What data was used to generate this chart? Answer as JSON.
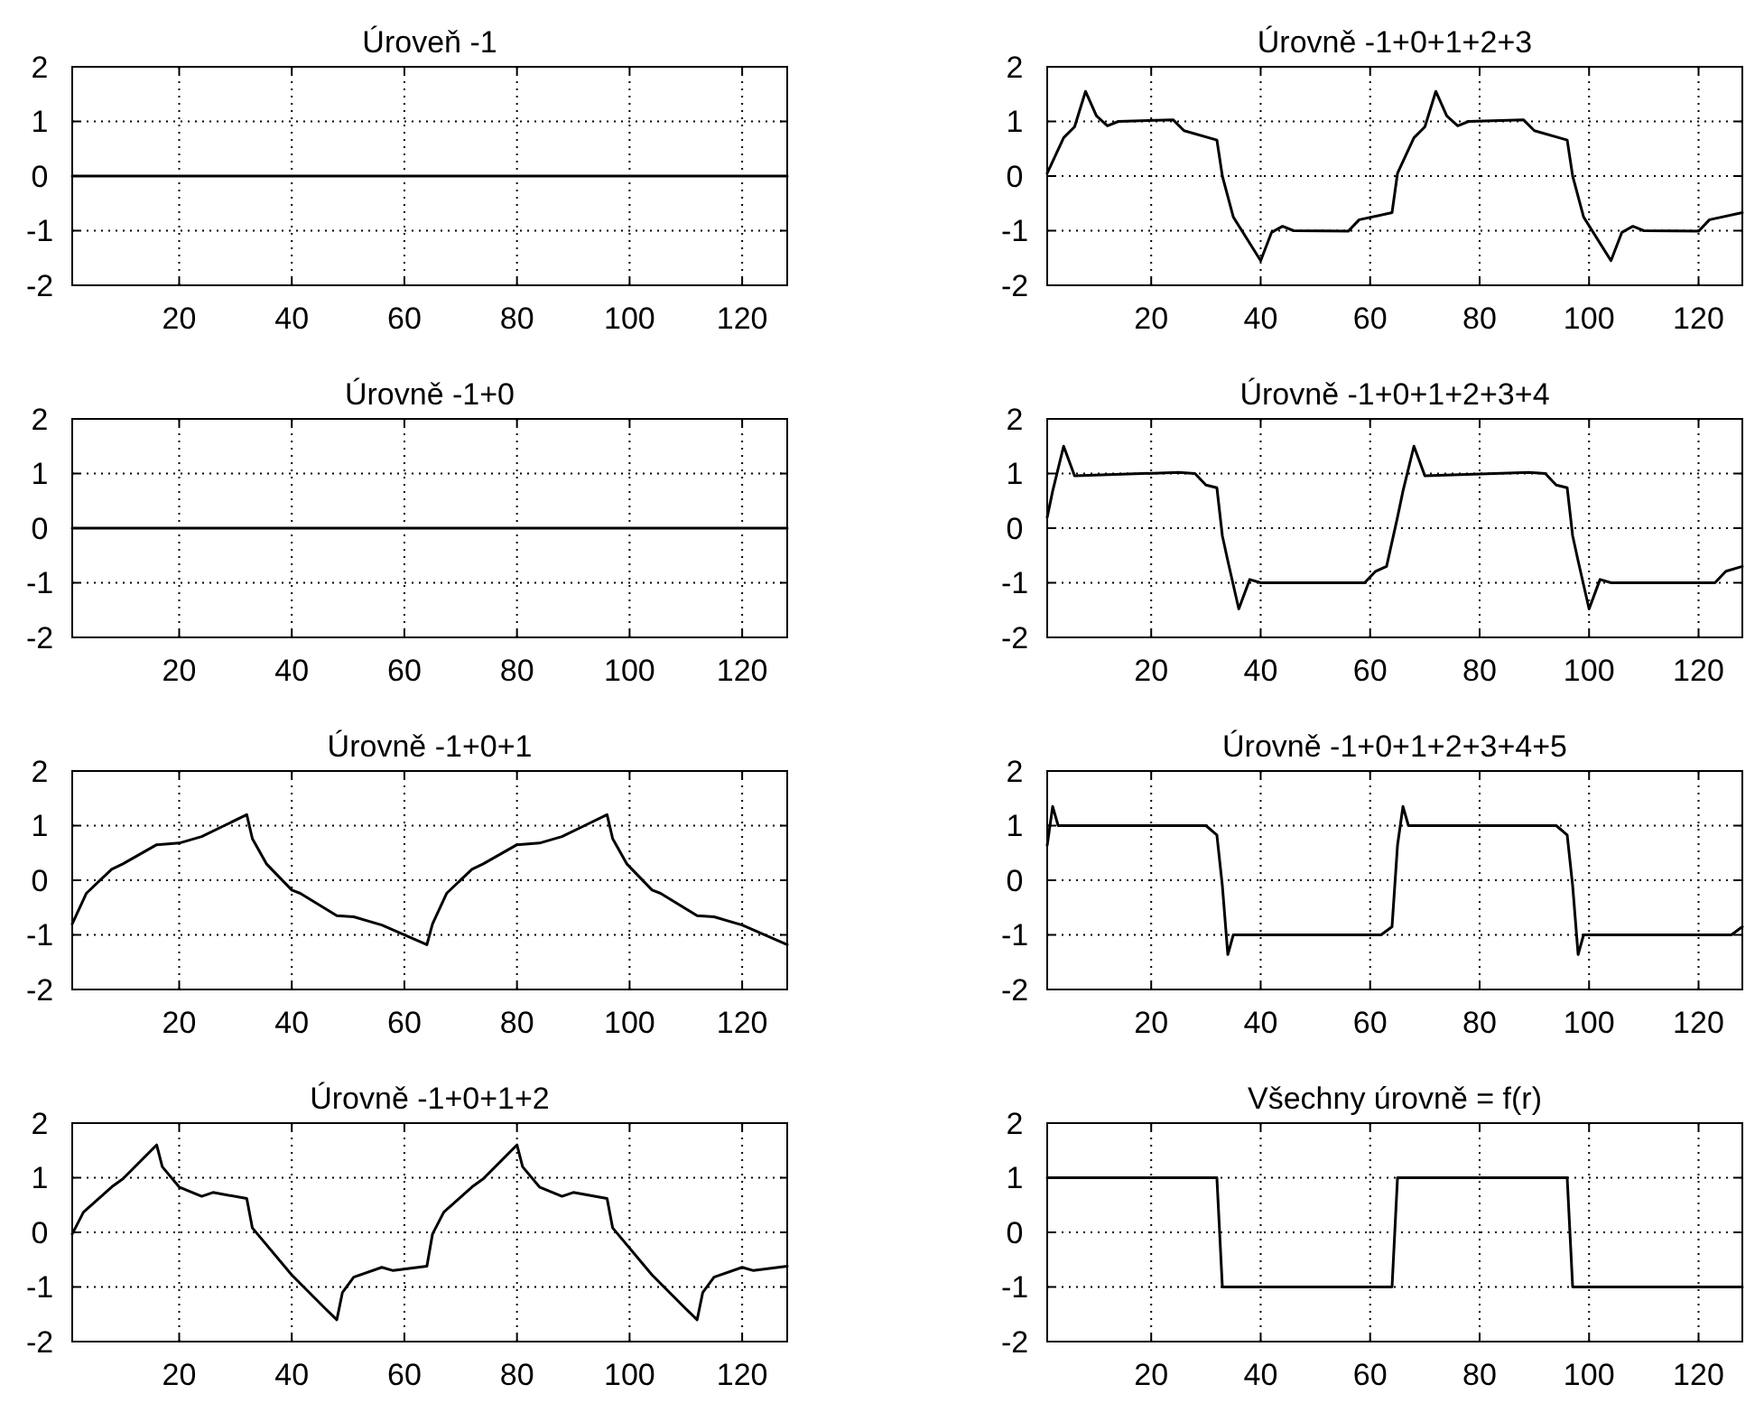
{
  "chart_data": [
    {
      "type": "line",
      "title": "Úroveň -1",
      "x": [
        1,
        128
      ],
      "values": [
        0,
        0
      ],
      "color": "#000000",
      "xlim": [
        1,
        128
      ],
      "xticks": [
        20,
        40,
        60,
        80,
        100,
        120
      ],
      "ylim": [
        -2,
        2
      ],
      "yticks": [
        -2,
        -1,
        0,
        1,
        2
      ],
      "grid": true
    },
    {
      "type": "line",
      "title": "Úrovně -1+0+1+2+3",
      "x": [
        1,
        4,
        6,
        8,
        10,
        12,
        14,
        24,
        26,
        32,
        33,
        35,
        40,
        42,
        44,
        46,
        56,
        58,
        64,
        65,
        68,
        70,
        72,
        74,
        76,
        78,
        88,
        90,
        96,
        97,
        99,
        104,
        106,
        108,
        110,
        120,
        122,
        128
      ],
      "values": [
        0.05,
        0.7,
        0.9,
        1.55,
        1.1,
        0.92,
        1.0,
        1.03,
        0.83,
        0.66,
        0,
        -0.75,
        -1.55,
        -1.03,
        -0.92,
        -1.0,
        -1.01,
        -0.8,
        -0.67,
        0.05,
        0.7,
        0.9,
        1.55,
        1.1,
        0.92,
        1.0,
        1.03,
        0.83,
        0.66,
        0,
        -0.75,
        -1.55,
        -1.03,
        -0.92,
        -1.0,
        -1.01,
        -0.8,
        -0.67
      ],
      "color": "#000000",
      "xlim": [
        1,
        128
      ],
      "xticks": [
        20,
        40,
        60,
        80,
        100,
        120
      ],
      "ylim": [
        -2,
        2
      ],
      "yticks": [
        -2,
        -1,
        0,
        1,
        2
      ],
      "grid": true
    },
    {
      "type": "line",
      "title": "Úrovně -1+0",
      "x": [
        1,
        128
      ],
      "values": [
        0,
        0
      ],
      "color": "#000000",
      "xlim": [
        1,
        128
      ],
      "xticks": [
        20,
        40,
        60,
        80,
        100,
        120
      ],
      "ylim": [
        -2,
        2
      ],
      "yticks": [
        -2,
        -1,
        0,
        1,
        2
      ],
      "grid": true
    },
    {
      "type": "line",
      "title": "Úrovně -1+0+1+2+3+4",
      "x": [
        1,
        2,
        4,
        6,
        25,
        28,
        30,
        32,
        33,
        34,
        36,
        38,
        40,
        59,
        61,
        63,
        65,
        66,
        68,
        70,
        89,
        92,
        94,
        96,
        97,
        98,
        100,
        102,
        104,
        123,
        125,
        128
      ],
      "values": [
        0.2,
        0.68,
        1.5,
        0.96,
        1.02,
        1.0,
        0.79,
        0.74,
        -0.14,
        -0.6,
        -1.48,
        -0.94,
        -1.0,
        -1.0,
        -0.79,
        -0.7,
        0.2,
        0.68,
        1.5,
        0.96,
        1.02,
        1.0,
        0.79,
        0.74,
        -0.14,
        -0.6,
        -1.48,
        -0.94,
        -1.0,
        -1.0,
        -0.79,
        -0.7
      ],
      "color": "#000000",
      "xlim": [
        1,
        128
      ],
      "xticks": [
        20,
        40,
        60,
        80,
        100,
        120
      ],
      "ylim": [
        -2,
        2
      ],
      "yticks": [
        -2,
        -1,
        0,
        1,
        2
      ],
      "grid": true
    },
    {
      "type": "line",
      "title": "Úrovně -1+0+1",
      "x": [
        1,
        3.5,
        8,
        10,
        16,
        20,
        24,
        28,
        32,
        33,
        35.5,
        40,
        41.5,
        48,
        51,
        56,
        64,
        65,
        67.5,
        72,
        74,
        80,
        84,
        88,
        92,
        96,
        97,
        99.5,
        104,
        105.5,
        112,
        115,
        120,
        128
      ],
      "values": [
        -0.8,
        -0.24,
        0.2,
        0.3,
        0.65,
        0.68,
        0.8,
        1.0,
        1.2,
        0.76,
        0.3,
        -0.18,
        -0.24,
        -0.65,
        -0.67,
        -0.82,
        -1.18,
        -0.8,
        -0.24,
        0.2,
        0.3,
        0.65,
        0.68,
        0.8,
        1.0,
        1.2,
        0.76,
        0.3,
        -0.18,
        -0.24,
        -0.65,
        -0.67,
        -0.82,
        -1.18
      ],
      "color": "#000000",
      "xlim": [
        1,
        128
      ],
      "xticks": [
        20,
        40,
        60,
        80,
        100,
        120
      ],
      "ylim": [
        -2,
        2
      ],
      "yticks": [
        -2,
        -1,
        0,
        1,
        2
      ],
      "grid": true
    },
    {
      "type": "line",
      "title": "Úrovně -1+0+1+2+3+4+5",
      "x": [
        1,
        2,
        3,
        30,
        32,
        33,
        34,
        35,
        62,
        64,
        65,
        66,
        67,
        94,
        96,
        97,
        98,
        99,
        126,
        128
      ],
      "values": [
        0.64,
        1.35,
        1.0,
        1.0,
        0.83,
        -0.1,
        -1.36,
        -1.0,
        -1.0,
        -0.85,
        0.64,
        1.35,
        1.0,
        1.0,
        0.83,
        -0.1,
        -1.36,
        -1.0,
        -1.0,
        -0.85
      ],
      "color": "#000000",
      "xlim": [
        1,
        128
      ],
      "xticks": [
        20,
        40,
        60,
        80,
        100,
        120
      ],
      "ylim": [
        -2,
        2
      ],
      "yticks": [
        -2,
        -1,
        0,
        1,
        2
      ],
      "grid": true
    },
    {
      "type": "line",
      "title": "Úrovně -1+0+1+2",
      "x": [
        1,
        3,
        8,
        10,
        16,
        17,
        20,
        24,
        26,
        32,
        33,
        40,
        46,
        48,
        49,
        51,
        56,
        58,
        64,
        65,
        67,
        72,
        74,
        80,
        81,
        84,
        88,
        90,
        96,
        97,
        104,
        110,
        112,
        113,
        115,
        120,
        122,
        128
      ],
      "values": [
        -0.03,
        0.37,
        0.83,
        0.98,
        1.6,
        1.2,
        0.83,
        0.66,
        0.73,
        0.62,
        0.08,
        -0.78,
        -1.4,
        -1.6,
        -1.1,
        -0.82,
        -0.64,
        -0.7,
        -0.62,
        -0.03,
        0.37,
        0.83,
        0.98,
        1.6,
        1.2,
        0.83,
        0.66,
        0.73,
        0.62,
        0.08,
        -0.78,
        -1.4,
        -1.6,
        -1.1,
        -0.82,
        -0.64,
        -0.7,
        -0.62
      ],
      "color": "#000000",
      "xlim": [
        1,
        128
      ],
      "xticks": [
        20,
        40,
        60,
        80,
        100,
        120
      ],
      "ylim": [
        -2,
        2
      ],
      "yticks": [
        -2,
        -1,
        0,
        1,
        2
      ],
      "grid": true
    },
    {
      "type": "line",
      "title": "Všechny úrovně = f(r)",
      "x": [
        1,
        32,
        33,
        64,
        65,
        96,
        97,
        128
      ],
      "values": [
        1,
        1,
        -1,
        -1,
        1,
        1,
        -1,
        -1
      ],
      "color": "#000000",
      "xlim": [
        1,
        128
      ],
      "xticks": [
        20,
        40,
        60,
        80,
        100,
        120
      ],
      "ylim": [
        -2,
        2
      ],
      "yticks": [
        -2,
        -1,
        0,
        1,
        2
      ],
      "grid": true
    }
  ]
}
